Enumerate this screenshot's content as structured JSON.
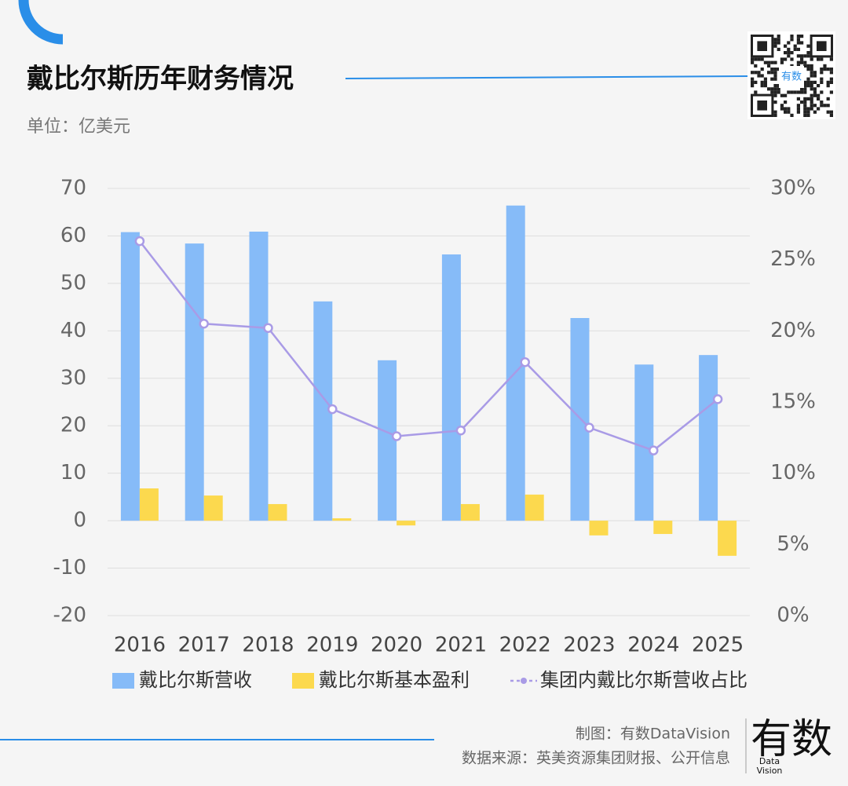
{
  "chart_data": {
    "type": "bar_line",
    "title": "戴比尔斯历年财务情况",
    "subtitle": "单位：亿美元",
    "categories": [
      "2016",
      "2017",
      "2018",
      "2019",
      "2020",
      "2021",
      "2022",
      "2023",
      "2024",
      "2025"
    ],
    "series": [
      {
        "name": "戴比尔斯营收",
        "type": "bar",
        "color": "#86bbf8",
        "values": [
          60.8,
          58.4,
          60.9,
          46.2,
          33.8,
          56.1,
          66.4,
          42.7,
          32.9,
          34.9
        ]
      },
      {
        "name": "戴比尔斯基本盈利",
        "type": "bar",
        "color": "#fcd94e",
        "values": [
          6.8,
          5.3,
          3.5,
          0.5,
          -1.0,
          3.5,
          5.5,
          -3.1,
          -2.8,
          -7.4
        ]
      },
      {
        "name": "集团内戴比尔斯营收占比",
        "type": "line",
        "axis": "y2",
        "color": "#a99be6",
        "values": [
          26.3,
          20.5,
          20.2,
          14.5,
          12.6,
          13.0,
          17.8,
          13.2,
          11.6,
          15.2
        ]
      }
    ],
    "ylim": [
      -20,
      70
    ],
    "yticks": [
      -20,
      -10,
      0,
      10,
      20,
      30,
      40,
      50,
      60,
      70
    ],
    "y2lim": [
      0,
      30
    ],
    "y2ticks": [
      {
        "value": 0,
        "label": "0%"
      },
      {
        "value": 5,
        "label": "5%"
      },
      {
        "value": 10,
        "label": "10%"
      },
      {
        "value": 15,
        "label": "15%"
      },
      {
        "value": 20,
        "label": "20%"
      },
      {
        "value": 25,
        "label": "25%"
      },
      {
        "value": 30,
        "label": "30%"
      }
    ],
    "grid": true,
    "legend": "bottom"
  },
  "qr": {
    "label": "有数"
  },
  "footer": {
    "credit": "制图：有数DataVision",
    "source": "数据来源：英美资源集团财报、公开信息",
    "logo": "有数",
    "logo_sub": [
      "Data",
      "Vision"
    ]
  }
}
